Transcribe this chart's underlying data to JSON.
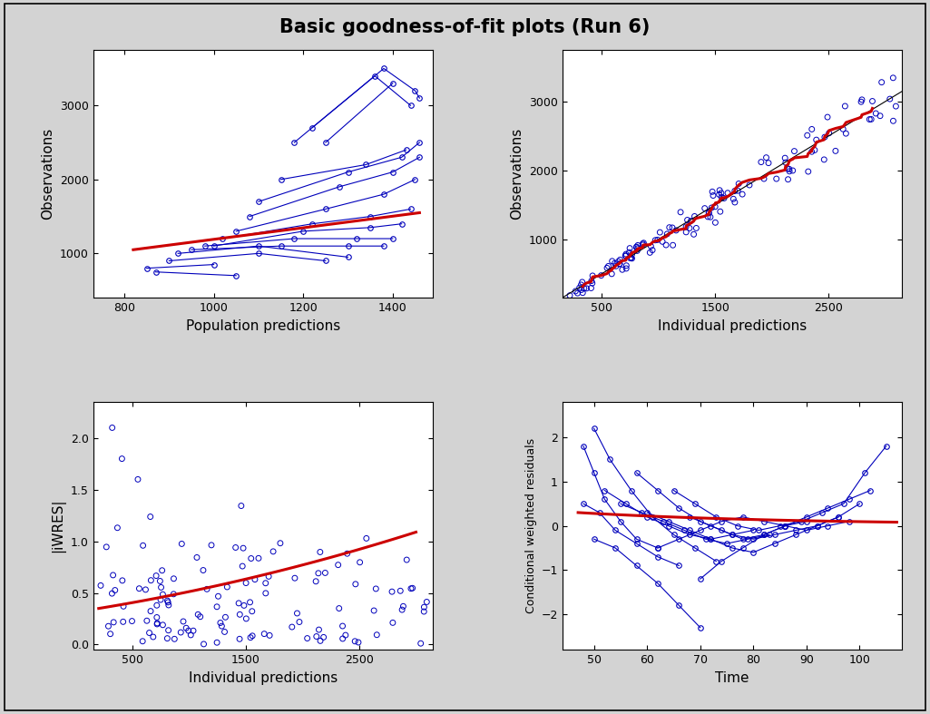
{
  "title": "Basic goodness-of-fit plots (Run 6)",
  "title_fontsize": 15,
  "bg_color": "#d3d3d3",
  "plot_bg_color": "#ffffff",
  "blue_color": "#0000bb",
  "red_color": "#cc0000",
  "black_color": "#000000",
  "subplot1": {
    "xlabel": "Population predictions",
    "ylabel": "Observations",
    "xlim": [
      730,
      1490
    ],
    "ylim": [
      400,
      3750
    ],
    "xticks": [
      800,
      1000,
      1200,
      1400
    ],
    "yticks": [
      1000,
      2000,
      3000
    ]
  },
  "subplot2": {
    "xlabel": "Individual predictions",
    "ylabel": "Observations",
    "xlim": [
      150,
      3150
    ],
    "ylim": [
      150,
      3750
    ],
    "xticks": [
      500,
      1500,
      2500
    ],
    "yticks": [
      1000,
      2000,
      3000
    ]
  },
  "subplot3": {
    "xlabel": "Individual predictions",
    "ylabel": "|iWRES|",
    "xlim": [
      150,
      3150
    ],
    "ylim": [
      -0.05,
      2.35
    ],
    "xticks": [
      500,
      1500,
      2500
    ],
    "yticks": [
      0.0,
      0.5,
      1.0,
      1.5,
      2.0
    ]
  },
  "subplot4": {
    "xlabel": "Time",
    "ylabel": "Conditional weighted residuals",
    "xlim": [
      44,
      108
    ],
    "ylim": [
      -2.8,
      2.8
    ],
    "xticks": [
      50,
      60,
      70,
      80,
      90,
      100
    ],
    "yticks": [
      -2,
      -1,
      0,
      1,
      2
    ]
  },
  "subject_data_p1": [
    [
      [
        850,
        1000
      ],
      [
        800,
        850
      ]
    ],
    [
      [
        870,
        1050
      ],
      [
        750,
        700
      ]
    ],
    [
      [
        900,
        1100,
        1250
      ],
      [
        900,
        1000,
        900
      ]
    ],
    [
      [
        920,
        1100,
        1300
      ],
      [
        1000,
        1100,
        950
      ]
    ],
    [
      [
        950,
        1150,
        1300,
        1380
      ],
      [
        1050,
        1100,
        1100,
        1100
      ]
    ],
    [
      [
        980,
        1180,
        1320,
        1400
      ],
      [
        1100,
        1200,
        1200,
        1200
      ]
    ],
    [
      [
        1000,
        1200,
        1350,
        1420
      ],
      [
        1100,
        1300,
        1350,
        1400
      ]
    ],
    [
      [
        1020,
        1220,
        1350,
        1440
      ],
      [
        1200,
        1400,
        1500,
        1600
      ]
    ],
    [
      [
        1050,
        1250,
        1380,
        1450
      ],
      [
        1300,
        1600,
        1800,
        2000
      ]
    ],
    [
      [
        1080,
        1280,
        1400,
        1460
      ],
      [
        1500,
        1900,
        2100,
        2300
      ]
    ],
    [
      [
        1100,
        1300,
        1420,
        1460
      ],
      [
        1700,
        2100,
        2300,
        2500
      ]
    ],
    [
      [
        1150,
        1340,
        1430
      ],
      [
        2000,
        2200,
        2400
      ]
    ],
    [
      [
        1180,
        1360,
        1440
      ],
      [
        2500,
        3400,
        3000
      ]
    ],
    [
      [
        1220,
        1380,
        1450,
        1460
      ],
      [
        2700,
        3500,
        3200,
        3100
      ]
    ],
    [
      [
        1250,
        1400
      ],
      [
        2500,
        3300
      ]
    ]
  ],
  "subject_data_p4": [
    [
      [
        48,
        50,
        52,
        55,
        58,
        62
      ],
      [
        1.8,
        1.2,
        0.6,
        0.1,
        -0.3,
        -0.5
      ]
    ],
    [
      [
        48,
        51,
        54,
        58,
        62,
        66
      ],
      [
        0.5,
        0.3,
        -0.1,
        -0.4,
        -0.7,
        -0.9
      ]
    ],
    [
      [
        50,
        53,
        57,
        61,
        65,
        69,
        73
      ],
      [
        2.2,
        1.5,
        0.8,
        0.2,
        -0.2,
        -0.5,
        -0.8
      ]
    ],
    [
      [
        50,
        54,
        58,
        62,
        66,
        70
      ],
      [
        -0.3,
        -0.5,
        -0.9,
        -1.3,
        -1.8,
        -2.3
      ]
    ],
    [
      [
        52,
        56,
        60,
        64,
        68,
        72,
        76,
        80
      ],
      [
        0.8,
        0.5,
        0.2,
        0.0,
        -0.2,
        -0.3,
        -0.2,
        -0.1
      ]
    ],
    [
      [
        55,
        59,
        63,
        67,
        71,
        75,
        79,
        83
      ],
      [
        0.5,
        0.3,
        0.1,
        -0.1,
        -0.3,
        -0.4,
        -0.3,
        -0.2
      ]
    ],
    [
      [
        58,
        62,
        66,
        70,
        74,
        78,
        82,
        86,
        90
      ],
      [
        1.2,
        0.8,
        0.4,
        0.1,
        -0.1,
        -0.3,
        -0.2,
        0.0,
        0.1
      ]
    ],
    [
      [
        60,
        64,
        68,
        72,
        76,
        80,
        84,
        88,
        92,
        96
      ],
      [
        0.3,
        0.1,
        -0.1,
        -0.3,
        -0.5,
        -0.6,
        -0.4,
        -0.2,
        0.0,
        0.2
      ]
    ],
    [
      [
        62,
        66,
        70,
        74,
        78,
        82,
        86,
        90,
        94,
        98
      ],
      [
        -0.5,
        -0.3,
        -0.1,
        0.1,
        0.2,
        0.1,
        0.0,
        -0.1,
        0.0,
        0.1
      ]
    ],
    [
      [
        65,
        69,
        73,
        77,
        81,
        85,
        89,
        93,
        97,
        101,
        105
      ],
      [
        0.8,
        0.5,
        0.2,
        0.0,
        -0.1,
        0.0,
        0.1,
        0.3,
        0.5,
        1.2,
        1.8
      ]
    ],
    [
      [
        68,
        72,
        76,
        80,
        84,
        88,
        92,
        96,
        100
      ],
      [
        0.2,
        0.0,
        -0.2,
        -0.3,
        -0.2,
        -0.1,
        0.0,
        0.2,
        0.5
      ]
    ],
    [
      [
        70,
        74,
        78,
        82,
        86,
        90,
        94,
        98,
        102
      ],
      [
        -1.2,
        -0.8,
        -0.5,
        -0.2,
        0.0,
        0.2,
        0.4,
        0.6,
        0.8
      ]
    ]
  ]
}
